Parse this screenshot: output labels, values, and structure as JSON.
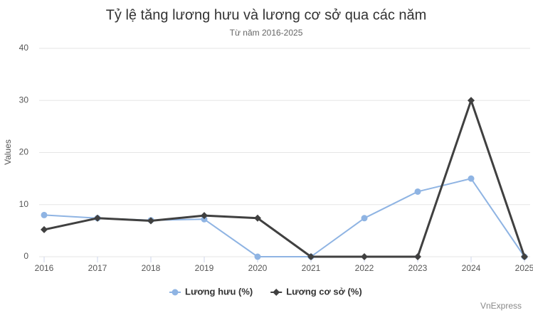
{
  "chart_data": {
    "type": "line",
    "title": "Tỷ lệ tăng lương hưu và lương cơ sở qua các năm",
    "subtitle": "Từ năm 2016-2025",
    "y_label": "Values",
    "credit": "VnExpress",
    "categories": [
      "2016",
      "2017",
      "2018",
      "2019",
      "2020",
      "2021",
      "2022",
      "2023",
      "2024",
      "2025"
    ],
    "series": [
      {
        "name": "Lương hưu (%)",
        "color": "#8fb4e3",
        "marker": "circle",
        "values": [
          8.0,
          7.4,
          7.0,
          7.2,
          0,
          0,
          7.4,
          12.5,
          15,
          0
        ]
      },
      {
        "name": "Lương cơ sở (%)",
        "color": "#404040",
        "marker": "diamond",
        "values": [
          5.2,
          7.4,
          6.9,
          7.9,
          7.4,
          0,
          0,
          0,
          30,
          0
        ]
      }
    ],
    "ylim": [
      0,
      40
    ],
    "yticks": [
      0,
      10,
      20,
      30,
      40
    ],
    "grid": true
  }
}
